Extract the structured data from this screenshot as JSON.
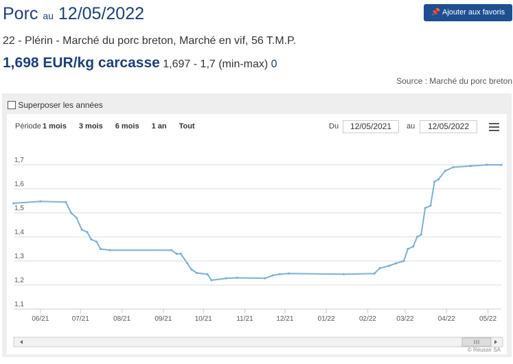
{
  "header": {
    "title": "Porc",
    "au": "au",
    "date": "12/05/2022",
    "favorite_button": "Ajouter aux favoris",
    "subtitle": "22 - Plérin - Marché du porc breton, Marché en vif, 56 T.M.P.",
    "price": "1,698 EUR/kg carcasse",
    "minmax": "1,697 - 1,7 (min-max)",
    "change": "0",
    "source": "Source : Marché du porc breton"
  },
  "controls": {
    "overlay_checkbox": "Superposer les années",
    "period_label": "Période",
    "periods": [
      "1 mois",
      "3 mois",
      "6 mois",
      "1 an",
      "Tout"
    ],
    "from_label": "Du",
    "from": "12/05/2021",
    "to_label": "au",
    "to": "12/05/2022"
  },
  "chart_data": {
    "type": "line",
    "color": "#7ab0d8",
    "credit": "© Réussir SA",
    "x": [
      0,
      20,
      39,
      43,
      47,
      51,
      55,
      58,
      62,
      65,
      72,
      118,
      122,
      125,
      130,
      133,
      137,
      145,
      148,
      159,
      167,
      188,
      194,
      199,
      206,
      247,
      270,
      274,
      281,
      286,
      292,
      295,
      299,
      302,
      305,
      308,
      312,
      315,
      318,
      323,
      329,
      342,
      354,
      365
    ],
    "values": [
      1.54,
      1.548,
      1.545,
      1.5,
      1.48,
      1.43,
      1.42,
      1.39,
      1.38,
      1.35,
      1.345,
      1.345,
      1.33,
      1.33,
      1.29,
      1.265,
      1.25,
      1.245,
      1.22,
      1.228,
      1.23,
      1.228,
      1.24,
      1.245,
      1.248,
      1.245,
      1.248,
      1.27,
      1.28,
      1.29,
      1.3,
      1.35,
      1.36,
      1.4,
      1.41,
      1.52,
      1.53,
      1.63,
      1.64,
      1.675,
      1.69,
      1.695,
      1.7,
      1.7
    ],
    "xlim": [
      0,
      365
    ],
    "xticks": [
      {
        "value": 20,
        "label": "06/21"
      },
      {
        "value": 50,
        "label": "07/21"
      },
      {
        "value": 81,
        "label": "08/21"
      },
      {
        "value": 112,
        "label": "09/21"
      },
      {
        "value": 142,
        "label": "10/21"
      },
      {
        "value": 173,
        "label": "11/21"
      },
      {
        "value": 203,
        "label": "12/21"
      },
      {
        "value": 234,
        "label": "01/22"
      },
      {
        "value": 265,
        "label": "02/22"
      },
      {
        "value": 293,
        "label": "03/22"
      },
      {
        "value": 324,
        "label": "04/22"
      },
      {
        "value": 355,
        "label": "05/22"
      }
    ],
    "ylim": [
      1.1,
      1.78
    ],
    "yticks": [
      {
        "value": 1.1,
        "label": "1,1"
      },
      {
        "value": 1.2,
        "label": "1,2"
      },
      {
        "value": 1.3,
        "label": "1,3"
      },
      {
        "value": 1.4,
        "label": "1,4"
      },
      {
        "value": 1.5,
        "label": "1,5"
      },
      {
        "value": 1.6,
        "label": "1,6"
      },
      {
        "value": 1.7,
        "label": "1,7"
      }
    ],
    "grid": true
  }
}
